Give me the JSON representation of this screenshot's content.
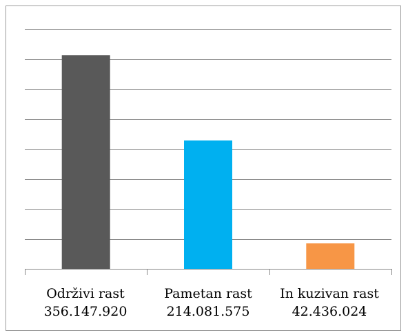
{
  "chart_data": {
    "type": "bar",
    "categories": [
      "Održivi rast",
      "Pametan rast",
      "In kuzivan rast"
    ],
    "value_labels": [
      "356.147.920",
      "214.081.575",
      "42.436.024"
    ],
    "values": [
      356147920,
      214081575,
      42436024
    ],
    "colors": [
      "#595959",
      "#00b0f0",
      "#f79646"
    ],
    "ylim": [
      0,
      400000000
    ],
    "gridline_count": 8,
    "grid": true,
    "title": "",
    "xlabel": "",
    "ylabel": ""
  }
}
